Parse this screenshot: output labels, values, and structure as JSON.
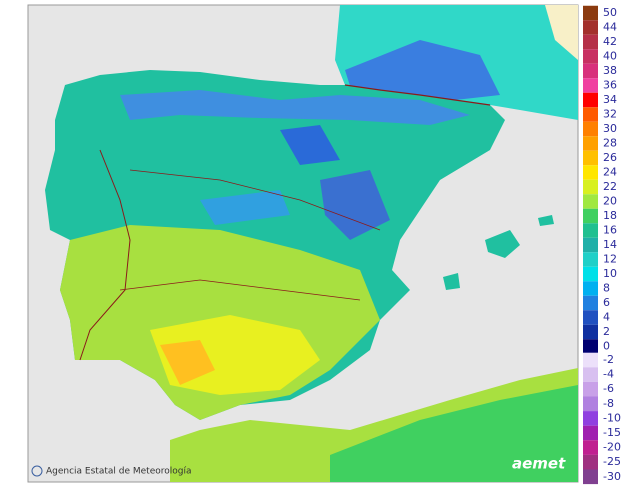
{
  "legend": {
    "warm": [
      {
        "value": 50,
        "color": "#8b3a0f"
      },
      {
        "value": 44,
        "color": "#a3302c"
      },
      {
        "value": 42,
        "color": "#b53048"
      },
      {
        "value": 40,
        "color": "#c83062"
      },
      {
        "value": 38,
        "color": "#d8307c"
      },
      {
        "value": 36,
        "color": "#f040a0"
      },
      {
        "value": 34,
        "color": "#ff0000"
      },
      {
        "value": 32,
        "color": "#ff5a00"
      },
      {
        "value": 30,
        "color": "#ff8000"
      },
      {
        "value": 28,
        "color": "#ffa000"
      },
      {
        "value": 26,
        "color": "#ffc000"
      },
      {
        "value": 24,
        "color": "#ffe600"
      },
      {
        "value": 22,
        "color": "#d8f020"
      },
      {
        "value": 20,
        "color": "#a0e840"
      },
      {
        "value": 18,
        "color": "#40d060"
      },
      {
        "value": 16,
        "color": "#20c090"
      },
      {
        "value": 14,
        "color": "#20b0a8"
      },
      {
        "value": 12,
        "color": "#20d0c8"
      },
      {
        "value": 10,
        "color": "#00e0e8"
      },
      {
        "value": 8,
        "color": "#00b0f0"
      },
      {
        "value": 6,
        "color": "#2080e0"
      },
      {
        "value": 4,
        "color": "#2050c0"
      },
      {
        "value": 2,
        "color": "#1030a0"
      },
      {
        "value": 0,
        "color": "#000070"
      }
    ],
    "cold": [
      {
        "value": -2,
        "color": "#ece0fa"
      },
      {
        "value": -4,
        "color": "#d8c0f0"
      },
      {
        "value": -6,
        "color": "#c8a0e8"
      },
      {
        "value": -8,
        "color": "#b080e0"
      },
      {
        "value": -10,
        "color": "#9040e0"
      },
      {
        "value": -15,
        "color": "#a020b0"
      },
      {
        "value": -20,
        "color": "#c02090"
      },
      {
        "value": -25,
        "color": "#a03080"
      },
      {
        "value": -30,
        "color": "#804090"
      }
    ]
  },
  "credit": "Agencia Estatal de Meteorología",
  "logo": "aemet"
}
